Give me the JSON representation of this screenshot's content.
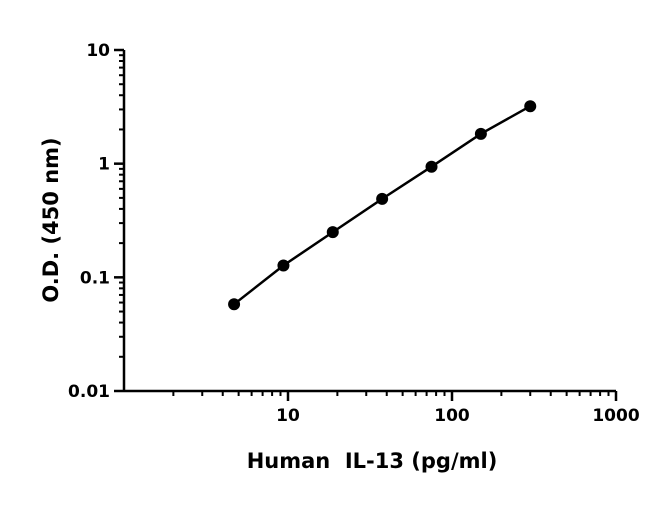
{
  "chart_data": {
    "type": "scatter",
    "title": "",
    "xlabel": "Human  IL-13 (pg/ml)",
    "ylabel": "O.D. (450 nm)",
    "x_scale": "log",
    "y_scale": "log",
    "xlim": [
      1,
      1000
    ],
    "ylim": [
      0.01,
      10
    ],
    "x_ticks": [
      {
        "value": 10,
        "label": "10"
      },
      {
        "value": 100,
        "label": "100"
      },
      {
        "value": 1000,
        "label": "1000"
      }
    ],
    "y_ticks": [
      {
        "value": 0.01,
        "label": "0.01"
      },
      {
        "value": 0.1,
        "label": "0.1"
      },
      {
        "value": 1,
        "label": "1"
      },
      {
        "value": 10,
        "label": "10"
      }
    ],
    "grid": false,
    "legend": "none",
    "fit_line": true,
    "series": [
      {
        "x": [
          4.69,
          9.38,
          18.75,
          37.5,
          75,
          150,
          300
        ],
        "y": [
          0.058,
          0.127,
          0.25,
          0.49,
          0.94,
          1.83,
          3.2
        ]
      }
    ],
    "colors": {
      "points": "#000000",
      "line": "#000000",
      "axes": "#000000"
    }
  }
}
